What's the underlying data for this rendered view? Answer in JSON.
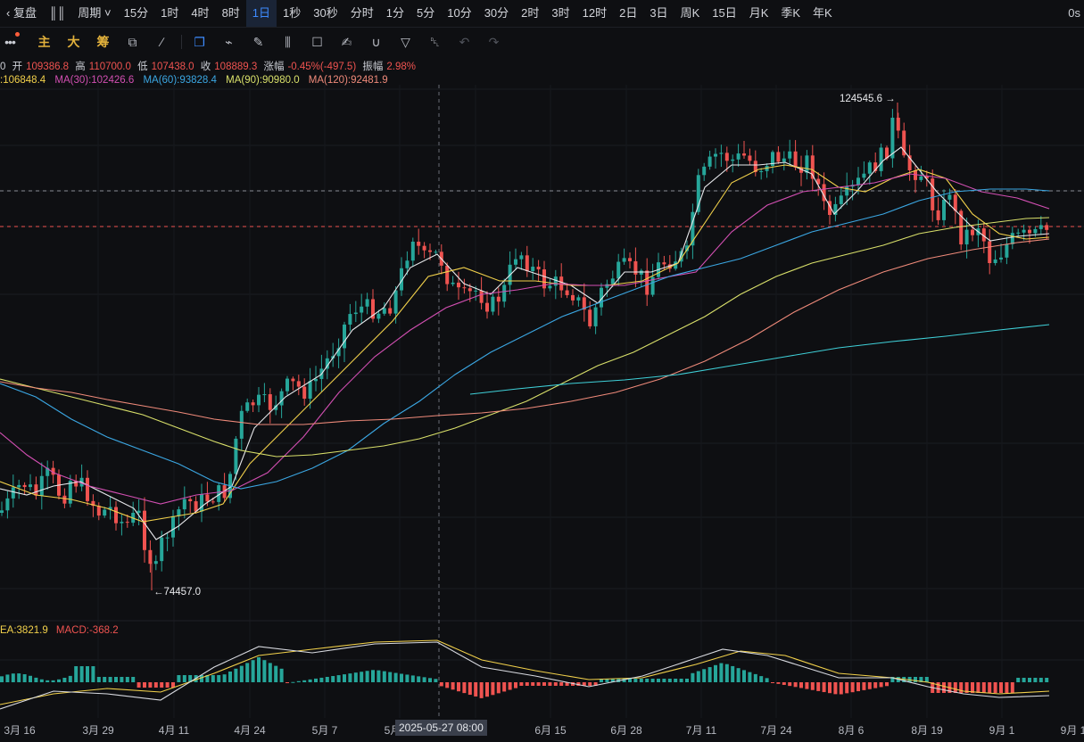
{
  "topbar": {
    "replay_label": "复盘",
    "period_label": "周期",
    "intervals": [
      "15分",
      "1时",
      "4时",
      "8时",
      "1日",
      "1秒",
      "30秒",
      "分时",
      "1分",
      "5分",
      "10分",
      "30分",
      "2时",
      "3时",
      "12时",
      "2日",
      "3日",
      "周K",
      "15日",
      "月K",
      "季K",
      "年K"
    ],
    "active_interval": "1日",
    "right_text": "0s"
  },
  "toolbar": {
    "main_label": "主",
    "big_label": "大",
    "chip_label": "筹"
  },
  "info": {
    "prefix": "0",
    "open_label": "开",
    "open": "109386.8",
    "high_label": "高",
    "high": "110700.0",
    "low_label": "低",
    "low": "107438.0",
    "close_label": "收",
    "close": "108889.3",
    "change_label": "涨幅",
    "change": "-0.45%(-497.5)",
    "amp_label": "振幅",
    "amp": "2.98%"
  },
  "ma": {
    "ma_first": ":106848.4",
    "ma30": "MA(30):102426.6",
    "ma60": "MA(60):93828.4",
    "ma90": "MA(90):90980.0",
    "ma120": "MA(120):92481.9"
  },
  "macd": {
    "dea": "EA:3821.9",
    "macd": "MACD:-368.2"
  },
  "extremes": {
    "high_mark": "124545.6",
    "low_mark": "74457.0"
  },
  "xaxis": {
    "labels": [
      "3月 16",
      "3月 29",
      "4月 11",
      "4月 24",
      "5月 7",
      "5月",
      "6月 15",
      "6月 28",
      "7月 11",
      "7月 24",
      "8月 6",
      "8月 19",
      "9月 1",
      "9月 1"
    ],
    "crosshair_label": "2025-05-27 08:00"
  },
  "colors": {
    "up": "#26a69a",
    "down": "#ef5350",
    "ma_first": "#e8e9ec",
    "ma_first_label": "#f2d14b",
    "ma30": "#d24fb2",
    "ma60": "#3ba7e3",
    "ma90": "#d9e06a",
    "ma120": "#ef8a7a",
    "cyan_line": "#3fd0d8",
    "info_down": "#ef5350"
  }
}
